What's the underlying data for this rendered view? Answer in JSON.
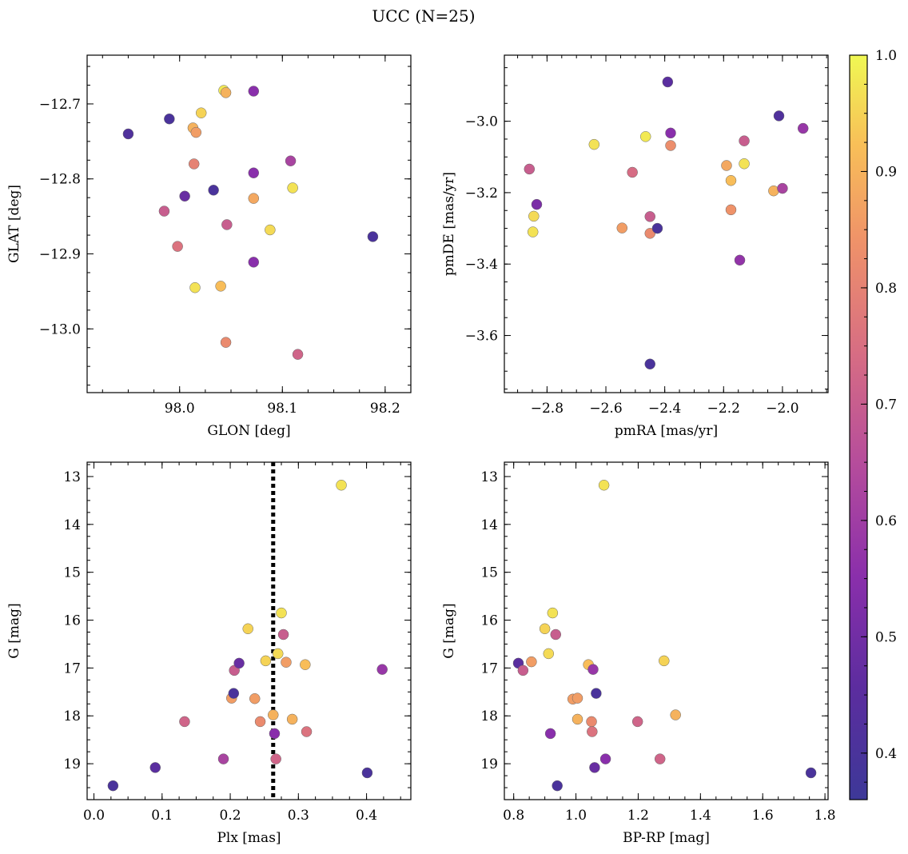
{
  "chart_data": {
    "type": "scatter",
    "title": "UCC (N=25)",
    "colorbar": {
      "range": [
        0.36,
        1.0
      ],
      "colormap": "plasma",
      "ticks": [
        0.4,
        0.5,
        0.6,
        0.7,
        0.8,
        0.9,
        1.0
      ],
      "tick_labels": [
        "0.4",
        "0.5",
        "0.6",
        "0.7",
        "0.8",
        "0.9",
        "1.0"
      ]
    },
    "panels": [
      {
        "xlabel": "GLON [deg]",
        "ylabel": "GLAT [deg]",
        "xlim": [
          97.91,
          98.225
        ],
        "ylim": [
          -13.085,
          -12.635
        ],
        "xticks": [
          98.0,
          98.1,
          98.2
        ],
        "xtick_labels": [
          "98.0",
          "98.1",
          "98.2"
        ],
        "yticks": [
          -12.7,
          -12.8,
          -12.9,
          -13.0
        ],
        "ytick_labels": [
          "−12.7",
          "−12.8",
          "−12.9",
          "−13.0"
        ],
        "minor_x": 0.025,
        "minor_y": 0.025,
        "invert_y": false,
        "points": [
          {
            "x": 97.95,
            "y": -12.74,
            "c": 0.42
          },
          {
            "x": 97.99,
            "y": -12.72,
            "c": 0.4
          },
          {
            "x": 98.005,
            "y": -12.823,
            "c": 0.48
          },
          {
            "x": 97.985,
            "y": -12.843,
            "c": 0.7
          },
          {
            "x": 97.998,
            "y": -12.89,
            "c": 0.76
          },
          {
            "x": 98.013,
            "y": -12.732,
            "c": 0.9
          },
          {
            "x": 98.016,
            "y": -12.738,
            "c": 0.86
          },
          {
            "x": 98.014,
            "y": -12.78,
            "c": 0.8
          },
          {
            "x": 98.021,
            "y": -12.712,
            "c": 0.95
          },
          {
            "x": 98.015,
            "y": -12.945,
            "c": 0.97
          },
          {
            "x": 98.033,
            "y": -12.815,
            "c": 0.4
          },
          {
            "x": 98.043,
            "y": -12.682,
            "c": 0.98
          },
          {
            "x": 98.045,
            "y": -12.685,
            "c": 0.9
          },
          {
            "x": 98.04,
            "y": -12.943,
            "c": 0.92
          },
          {
            "x": 98.046,
            "y": -12.861,
            "c": 0.7
          },
          {
            "x": 98.045,
            "y": -13.018,
            "c": 0.82
          },
          {
            "x": 98.072,
            "y": -12.683,
            "c": 0.55
          },
          {
            "x": 98.072,
            "y": -12.792,
            "c": 0.55
          },
          {
            "x": 98.072,
            "y": -12.826,
            "c": 0.88
          },
          {
            "x": 98.072,
            "y": -12.911,
            "c": 0.55
          },
          {
            "x": 98.088,
            "y": -12.868,
            "c": 0.96
          },
          {
            "x": 98.108,
            "y": -12.776,
            "c": 0.62
          },
          {
            "x": 98.11,
            "y": -12.812,
            "c": 0.97
          },
          {
            "x": 98.115,
            "y": -13.034,
            "c": 0.72
          },
          {
            "x": 98.188,
            "y": -12.877,
            "c": 0.4
          }
        ]
      },
      {
        "xlabel": "pmRA [mas/yr]",
        "ylabel": "pmDE [mas/yr]",
        "xlim": [
          -2.945,
          -1.845
        ],
        "ylim": [
          -3.76,
          -2.815
        ],
        "xticks": [
          -2.8,
          -2.6,
          -2.4,
          -2.2,
          -2.0
        ],
        "xtick_labels": [
          "−2.8",
          "−2.6",
          "−2.4",
          "−2.2",
          "−2.0"
        ],
        "yticks": [
          -3.0,
          -3.2,
          -3.4,
          -3.6
        ],
        "ytick_labels": [
          "−3.0",
          "−3.2",
          "−3.4",
          "−3.6"
        ],
        "minor_x": 0.05,
        "minor_y": 0.05,
        "invert_y": false,
        "points": [
          {
            "x": -2.86,
            "y": -3.134,
            "c": 0.7
          },
          {
            "x": -2.835,
            "y": -3.233,
            "c": 0.52
          },
          {
            "x": -2.845,
            "y": -3.266,
            "c": 0.96
          },
          {
            "x": -2.848,
            "y": -3.31,
            "c": 0.97
          },
          {
            "x": -2.64,
            "y": -3.065,
            "c": 0.97
          },
          {
            "x": -2.545,
            "y": -3.299,
            "c": 0.86
          },
          {
            "x": -2.51,
            "y": -3.143,
            "c": 0.74
          },
          {
            "x": -2.465,
            "y": -3.043,
            "c": 0.98
          },
          {
            "x": -2.45,
            "y": -3.267,
            "c": 0.7
          },
          {
            "x": -2.45,
            "y": -3.314,
            "c": 0.82
          },
          {
            "x": -2.45,
            "y": -3.68,
            "c": 0.4
          },
          {
            "x": -2.425,
            "y": -3.3,
            "c": 0.4
          },
          {
            "x": -2.39,
            "y": -2.89,
            "c": 0.45
          },
          {
            "x": -2.38,
            "y": -3.033,
            "c": 0.55
          },
          {
            "x": -2.38,
            "y": -3.068,
            "c": 0.83
          },
          {
            "x": -2.19,
            "y": -3.124,
            "c": 0.88
          },
          {
            "x": -2.175,
            "y": -3.166,
            "c": 0.92
          },
          {
            "x": -2.175,
            "y": -3.248,
            "c": 0.84
          },
          {
            "x": -2.145,
            "y": -3.389,
            "c": 0.57
          },
          {
            "x": -2.13,
            "y": -3.055,
            "c": 0.7
          },
          {
            "x": -2.13,
            "y": -3.119,
            "c": 0.97
          },
          {
            "x": -2.03,
            "y": -3.195,
            "c": 0.9
          },
          {
            "x": -2.012,
            "y": -2.985,
            "c": 0.42
          },
          {
            "x": -2.0,
            "y": -3.188,
            "c": 0.62
          },
          {
            "x": -1.93,
            "y": -3.02,
            "c": 0.58
          }
        ]
      },
      {
        "xlabel": "Plx [mas]",
        "ylabel": "G [mag]",
        "xlim": [
          -0.01,
          0.465
        ],
        "ylim": [
          12.7,
          19.75
        ],
        "xticks": [
          0.0,
          0.1,
          0.2,
          0.3,
          0.4
        ],
        "xtick_labels": [
          "0.0",
          "0.1",
          "0.2",
          "0.3",
          "0.4"
        ],
        "yticks": [
          13,
          14,
          15,
          16,
          17,
          18,
          19
        ],
        "ytick_labels": [
          "13",
          "14",
          "15",
          "16",
          "17",
          "18",
          "19"
        ],
        "minor_x": 0.025,
        "minor_y": 0.25,
        "invert_y": true,
        "vline": 0.263,
        "points": [
          {
            "x": 0.028,
            "y": 19.46,
            "c": 0.4
          },
          {
            "x": 0.09,
            "y": 19.08,
            "c": 0.45
          },
          {
            "x": 0.133,
            "y": 18.12,
            "c": 0.72
          },
          {
            "x": 0.19,
            "y": 18.9,
            "c": 0.62
          },
          {
            "x": 0.202,
            "y": 17.63,
            "c": 0.86
          },
          {
            "x": 0.205,
            "y": 17.53,
            "c": 0.4
          },
          {
            "x": 0.206,
            "y": 17.05,
            "c": 0.7
          },
          {
            "x": 0.213,
            "y": 16.9,
            "c": 0.48
          },
          {
            "x": 0.226,
            "y": 16.18,
            "c": 0.95
          },
          {
            "x": 0.236,
            "y": 17.64,
            "c": 0.86
          },
          {
            "x": 0.244,
            "y": 18.12,
            "c": 0.82
          },
          {
            "x": 0.252,
            "y": 16.85,
            "c": 0.95
          },
          {
            "x": 0.263,
            "y": 17.98,
            "c": 0.9
          },
          {
            "x": 0.265,
            "y": 18.37,
            "c": 0.55
          },
          {
            "x": 0.267,
            "y": 18.9,
            "c": 0.72
          },
          {
            "x": 0.27,
            "y": 16.7,
            "c": 0.96
          },
          {
            "x": 0.275,
            "y": 15.85,
            "c": 0.97
          },
          {
            "x": 0.278,
            "y": 16.3,
            "c": 0.7
          },
          {
            "x": 0.282,
            "y": 16.88,
            "c": 0.86
          },
          {
            "x": 0.291,
            "y": 18.07,
            "c": 0.9
          },
          {
            "x": 0.31,
            "y": 16.93,
            "c": 0.92
          },
          {
            "x": 0.312,
            "y": 18.33,
            "c": 0.76
          },
          {
            "x": 0.363,
            "y": 13.18,
            "c": 0.97
          },
          {
            "x": 0.401,
            "y": 19.19,
            "c": 0.4
          },
          {
            "x": 0.423,
            "y": 17.03,
            "c": 0.58
          }
        ]
      },
      {
        "xlabel": "BP-RP [mag]",
        "ylabel": "G [mag]",
        "xlim": [
          0.77,
          1.81
        ],
        "ylim": [
          12.7,
          19.75
        ],
        "xticks": [
          0.8,
          1.0,
          1.2,
          1.4,
          1.6,
          1.8
        ],
        "xtick_labels": [
          "0.8",
          "1.0",
          "1.2",
          "1.4",
          "1.6",
          "1.8"
        ],
        "yticks": [
          13,
          14,
          15,
          16,
          17,
          18,
          19
        ],
        "ytick_labels": [
          "13",
          "14",
          "15",
          "16",
          "17",
          "18",
          "19"
        ],
        "minor_x": 0.05,
        "minor_y": 0.25,
        "invert_y": true,
        "points": [
          {
            "x": 0.815,
            "y": 16.9,
            "c": 0.45
          },
          {
            "x": 0.83,
            "y": 17.05,
            "c": 0.7
          },
          {
            "x": 0.857,
            "y": 16.87,
            "c": 0.86
          },
          {
            "x": 0.9,
            "y": 16.18,
            "c": 0.95
          },
          {
            "x": 0.912,
            "y": 16.7,
            "c": 0.96
          },
          {
            "x": 0.918,
            "y": 18.37,
            "c": 0.55
          },
          {
            "x": 0.925,
            "y": 15.85,
            "c": 0.97
          },
          {
            "x": 0.935,
            "y": 16.3,
            "c": 0.7
          },
          {
            "x": 0.94,
            "y": 19.46,
            "c": 0.4
          },
          {
            "x": 0.99,
            "y": 17.65,
            "c": 0.86
          },
          {
            "x": 1.005,
            "y": 17.63,
            "c": 0.86
          },
          {
            "x": 1.005,
            "y": 18.07,
            "c": 0.9
          },
          {
            "x": 1.04,
            "y": 16.93,
            "c": 0.92
          },
          {
            "x": 1.05,
            "y": 18.12,
            "c": 0.82
          },
          {
            "x": 1.052,
            "y": 18.33,
            "c": 0.76
          },
          {
            "x": 1.055,
            "y": 17.03,
            "c": 0.58
          },
          {
            "x": 1.06,
            "y": 19.08,
            "c": 0.48
          },
          {
            "x": 1.065,
            "y": 17.53,
            "c": 0.4
          },
          {
            "x": 1.09,
            "y": 13.18,
            "c": 0.97
          },
          {
            "x": 1.095,
            "y": 18.9,
            "c": 0.55
          },
          {
            "x": 1.198,
            "y": 18.12,
            "c": 0.72
          },
          {
            "x": 1.27,
            "y": 18.9,
            "c": 0.72
          },
          {
            "x": 1.283,
            "y": 16.85,
            "c": 0.95
          },
          {
            "x": 1.32,
            "y": 17.98,
            "c": 0.9
          },
          {
            "x": 1.755,
            "y": 19.19,
            "c": 0.4
          }
        ]
      }
    ]
  }
}
